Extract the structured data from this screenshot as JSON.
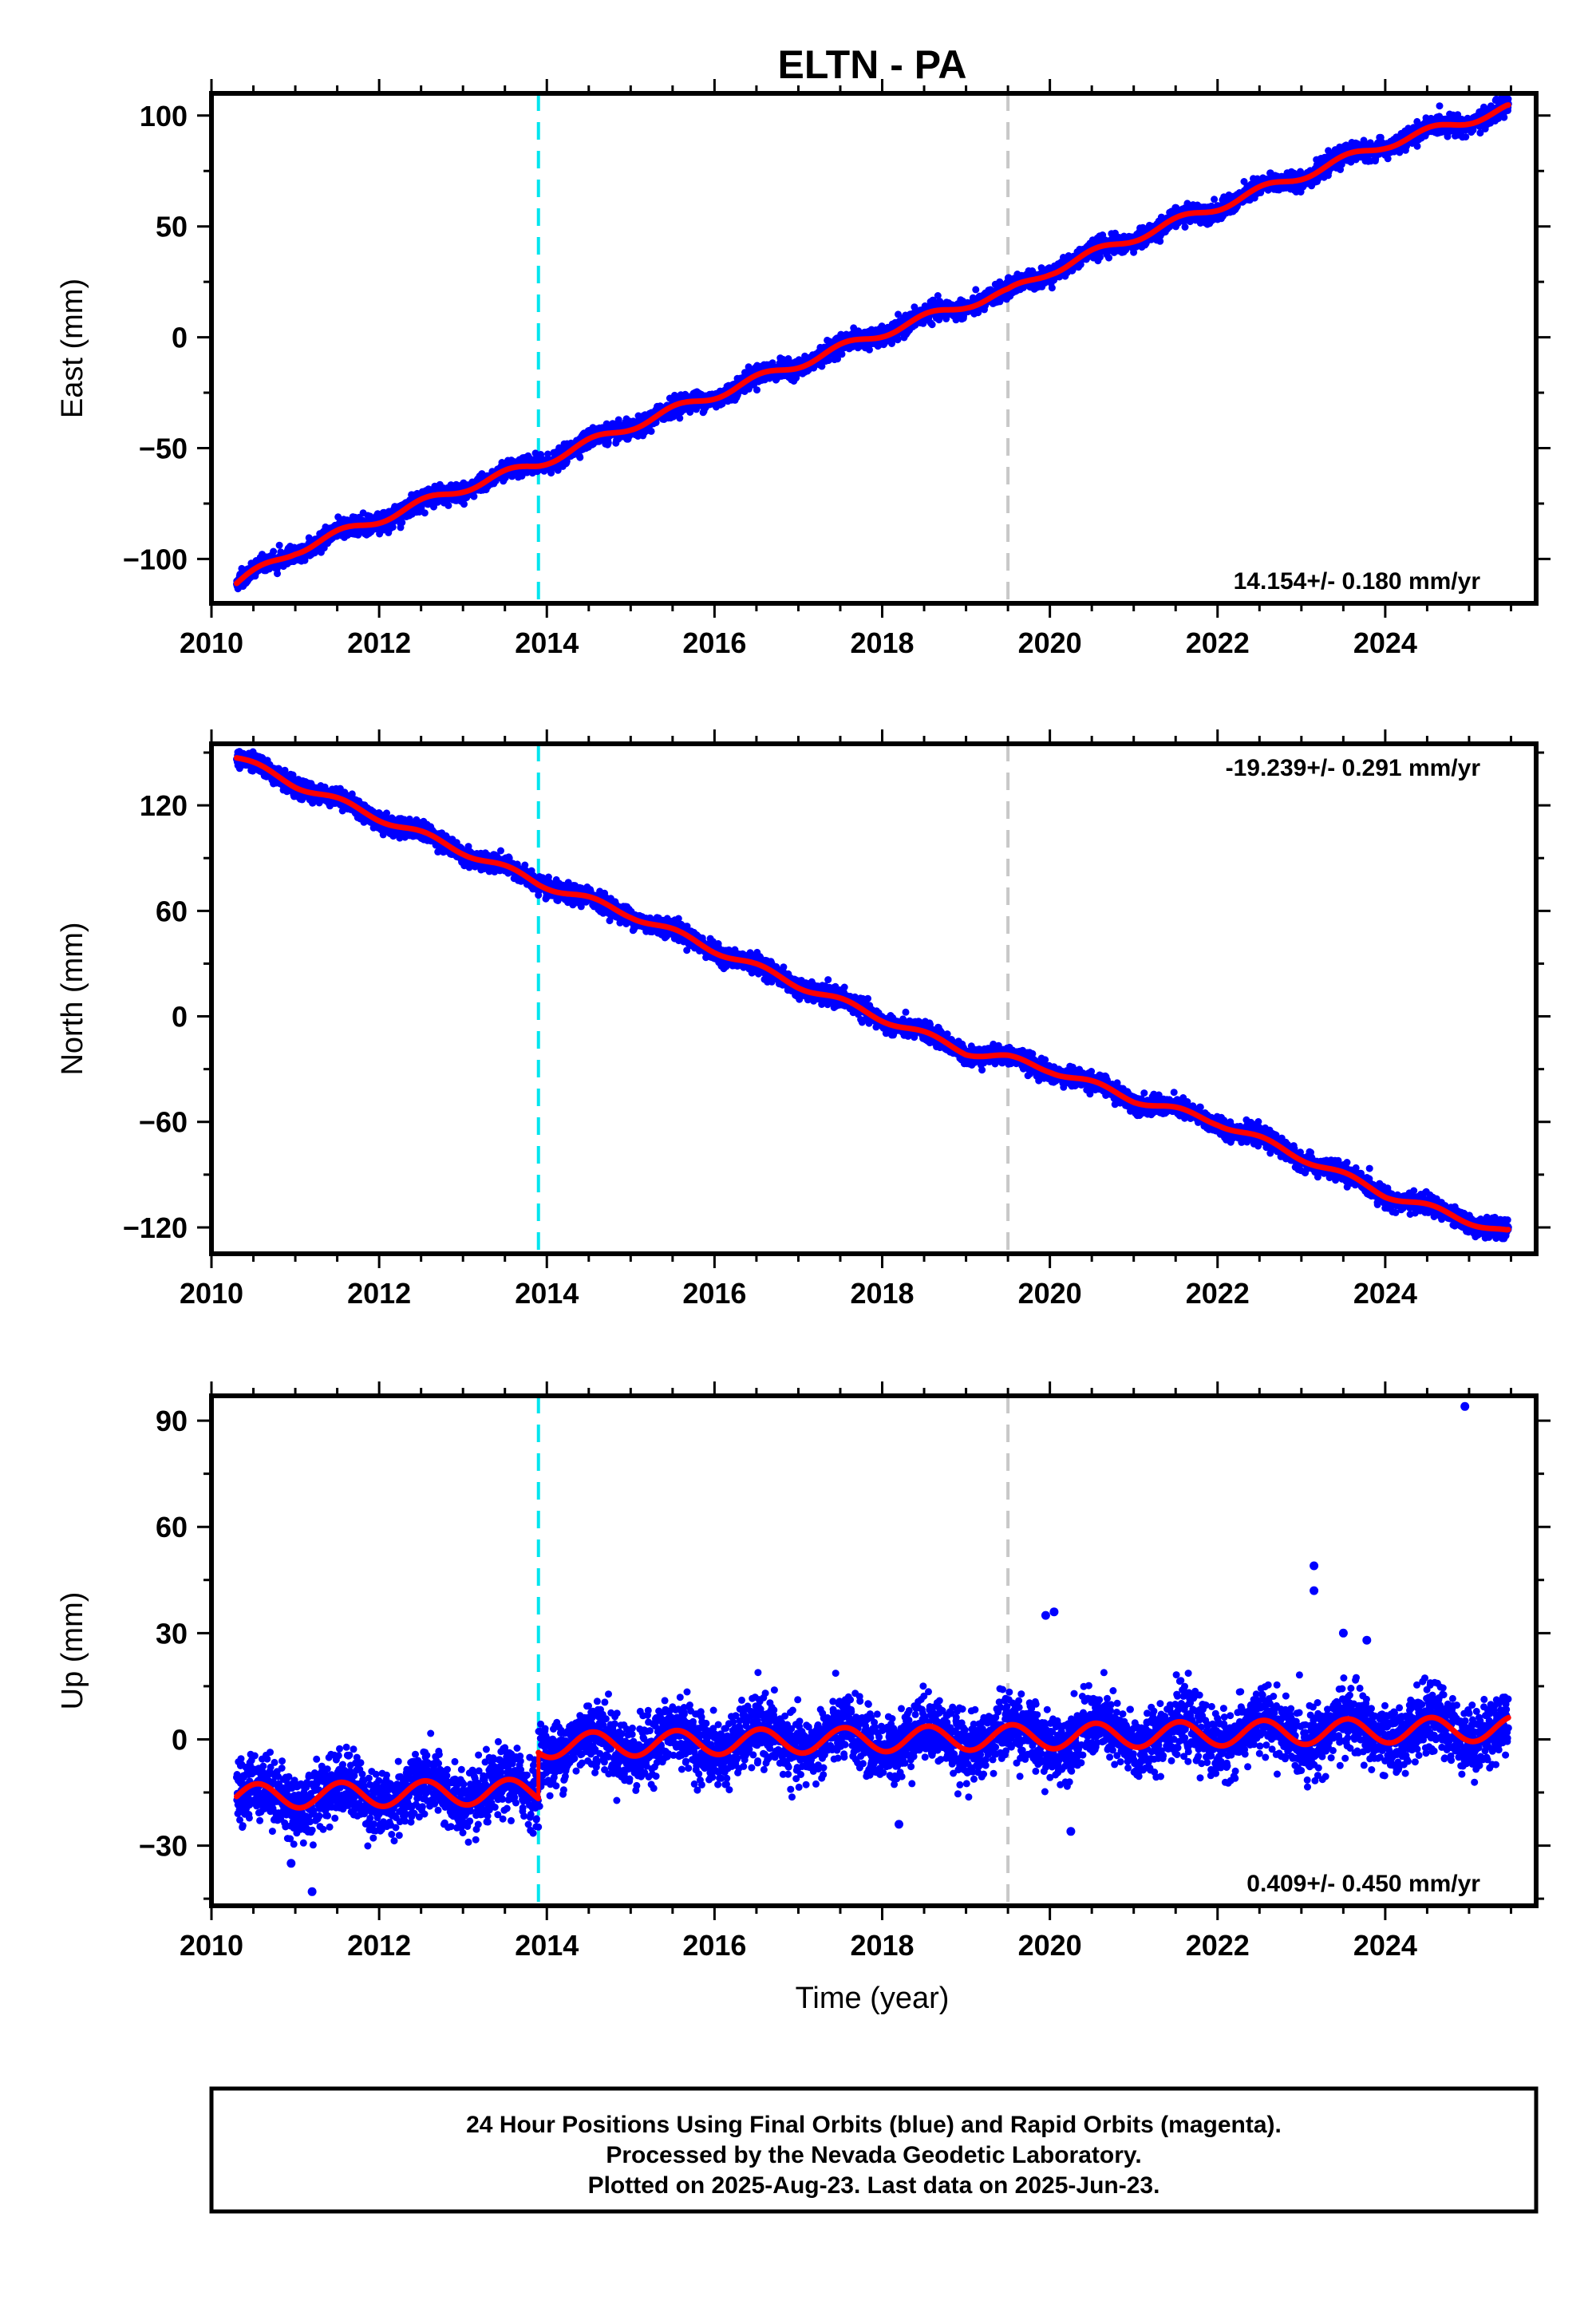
{
  "title": "ELTN - PA",
  "xlabel": "Time (year)",
  "colors": {
    "final_orbits": "#0000ff",
    "model_fit": "#ff0000",
    "event_line_1": "#00e5ee",
    "event_line_2": "#c8c8c8"
  },
  "footer": {
    "line1": "24 Hour Positions Using Final Orbits (blue) and Rapid Orbits (magenta).",
    "line2": "Processed by the Nevada Geodetic Laboratory.",
    "line3": "Plotted on 2025-Aug-23. Last data on 2025-Jun-23."
  },
  "chart_data": [
    {
      "type": "scatter",
      "component": "east",
      "ylabel": "East (mm)",
      "rate_label": "14.154+/- 0.180 mm/yr",
      "rate_position": "bottom-right",
      "xlim": [
        2010.0,
        2025.8
      ],
      "ylim": [
        -120,
        110
      ],
      "xticks": [
        2010,
        2012,
        2014,
        2016,
        2018,
        2020,
        2022,
        2024
      ],
      "yticks": [
        -100,
        -50,
        0,
        50,
        100
      ],
      "time_range": [
        2010.3,
        2025.47
      ],
      "vertical_lines": [
        2013.9,
        2019.5
      ],
      "offsets": [],
      "jumps": [],
      "fit_anchors": [
        [
          2010.3,
          -111
        ],
        [
          2011.0,
          -96
        ],
        [
          2012.0,
          -82
        ],
        [
          2013.0,
          -68
        ],
        [
          2013.9,
          -57
        ],
        [
          2015.0,
          -40
        ],
        [
          2016.0,
          -26
        ],
        [
          2017.0,
          -12
        ],
        [
          2018.0,
          2
        ],
        [
          2019.0,
          15
        ],
        [
          2019.5,
          20
        ],
        [
          2020.0,
          30
        ],
        [
          2021.0,
          45
        ],
        [
          2022.0,
          59
        ],
        [
          2023.0,
          73
        ],
        [
          2024.0,
          87
        ],
        [
          2025.45,
          103
        ]
      ],
      "seasonal_amplitude": 2.0,
      "scatter": 2.0,
      "outliers": []
    },
    {
      "type": "scatter",
      "component": "north",
      "ylabel": "North (mm)",
      "rate_label": "-19.239+/- 0.291 mm/yr",
      "rate_position": "top-right",
      "xlim": [
        2010.0,
        2025.8
      ],
      "ylim": [
        -135,
        155
      ],
      "xticks": [
        2010,
        2012,
        2014,
        2016,
        2018,
        2020,
        2022,
        2024
      ],
      "yticks": [
        -120,
        -60,
        0,
        60,
        120
      ],
      "time_range": [
        2010.3,
        2025.47
      ],
      "vertical_lines": [
        2013.9,
        2019.5
      ],
      "offsets": [],
      "jumps": [],
      "fit_anchors": [
        [
          2010.3,
          147
        ],
        [
          2011.0,
          132
        ],
        [
          2012.0,
          113
        ],
        [
          2013.0,
          94
        ],
        [
          2013.9,
          76
        ],
        [
          2015.0,
          58
        ],
        [
          2016.0,
          38
        ],
        [
          2017.0,
          18
        ],
        [
          2018.0,
          -1
        ],
        [
          2019.0,
          -20
        ],
        [
          2019.5,
          -24
        ],
        [
          2020.0,
          -30
        ],
        [
          2021.0,
          -47
        ],
        [
          2022.0,
          -60
        ],
        [
          2023.0,
          -80
        ],
        [
          2024.0,
          -101
        ],
        [
          2025.45,
          -123
        ]
      ],
      "seasonal_amplitude": 2.0,
      "scatter": 2.5,
      "outliers": []
    },
    {
      "type": "scatter",
      "component": "up",
      "ylabel": "Up (mm)",
      "rate_label": "0.409+/- 0.450 mm/yr",
      "rate_position": "bottom-right",
      "xlim": [
        2010.0,
        2025.8
      ],
      "ylim": [
        -47,
        97
      ],
      "xticks": [
        2010,
        2012,
        2014,
        2016,
        2018,
        2020,
        2022,
        2024
      ],
      "yticks": [
        -30,
        0,
        30,
        60,
        90
      ],
      "time_range": [
        2010.3,
        2025.47
      ],
      "vertical_lines": [
        2013.9,
        2019.5
      ],
      "offsets": [
        [
          2010.0,
          -13
        ],
        [
          2013.9,
          0
        ]
      ],
      "jumps": [
        2013.9
      ],
      "fit_anchors": [],
      "linear_rate": 0.409,
      "seasonal_amplitude": 3.5,
      "scatter": 4.5,
      "outliers": [
        [
          2024.95,
          94
        ],
        [
          2023.15,
          49
        ],
        [
          2023.15,
          42
        ],
        [
          2019.95,
          35
        ],
        [
          2020.05,
          36
        ],
        [
          2023.5,
          30
        ],
        [
          2023.78,
          28
        ],
        [
          2018.2,
          -24
        ],
        [
          2020.25,
          -26
        ],
        [
          2011.2,
          -43
        ],
        [
          2010.95,
          -35
        ]
      ]
    }
  ]
}
